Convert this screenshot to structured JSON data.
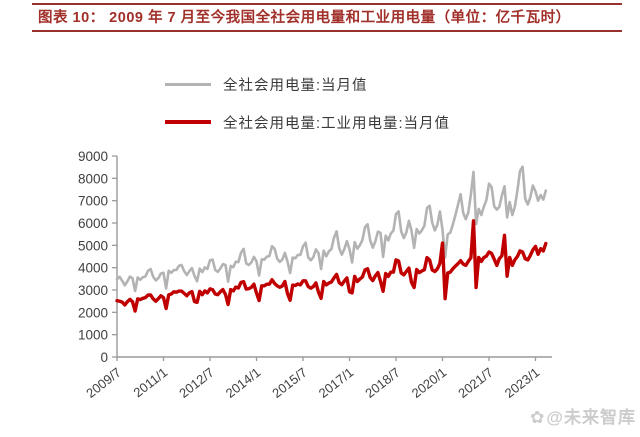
{
  "header": {
    "title": "图表 10：  2009 年 7 月至今我国全社会用电量和工业用电量（单位：亿千瓦时）"
  },
  "legend": [
    {
      "label": "全社会用电量:当月值",
      "color": "#b3b3b3"
    },
    {
      "label": "全社会用电量:工业用电量:当月值",
      "color": "#c00000"
    }
  ],
  "watermark": {
    "logo": "✿",
    "text": "@未来智库"
  },
  "colors": {
    "title_red": "#a1302a",
    "rule_red": "#97322c",
    "axis_gray": "#9a9a9a",
    "tick_label": "#404040"
  },
  "chart_data": {
    "type": "line",
    "title": "2009年7月至今我国全社会用电量和工业用电量",
    "unit": "亿千瓦时",
    "frequency": "monthly",
    "x_start": "2009-07",
    "x_end": "2023-05",
    "x_tick_labels": [
      "2009/7",
      "2011/1",
      "2012/7",
      "2014/1",
      "2015/7",
      "2017/1",
      "2018/7",
      "2020/1",
      "2021/7",
      "2023/1"
    ],
    "x_tick_interval_months": 18,
    "ylim": [
      0,
      9000
    ],
    "y_ticks": [
      0,
      1000,
      2000,
      3000,
      4000,
      5000,
      6000,
      7000,
      8000,
      9000
    ],
    "grid": false,
    "legend_position": "top",
    "series": [
      {
        "name": "全社会用电量:当月值",
        "color": "#b3b3b3",
        "stroke_width": 2.6,
        "values": [
          3480,
          3590,
          3410,
          3210,
          3380,
          3600,
          3530,
          2950,
          3560,
          3460,
          3570,
          3610,
          3860,
          3940,
          3590,
          3430,
          3530,
          3740,
          3770,
          3070,
          3860,
          3770,
          3890,
          3900,
          4090,
          4120,
          3840,
          3670,
          3840,
          3980,
          3630,
          3390,
          3960,
          3800,
          4010,
          3940,
          4330,
          4360,
          3900,
          3810,
          3960,
          4160,
          4120,
          3370,
          4080,
          4020,
          4270,
          4250,
          4670,
          4840,
          4190,
          4120,
          4230,
          4480,
          4280,
          3650,
          4370,
          4360,
          4490,
          4520,
          4960,
          4850,
          4400,
          4260,
          4360,
          4660,
          4270,
          3760,
          4450,
          4420,
          4570,
          4570,
          4950,
          5120,
          4460,
          4330,
          4470,
          4820,
          4650,
          3940,
          4760,
          4510,
          4730,
          4830,
          5340,
          5630,
          4870,
          4580,
          4830,
          5190,
          4830,
          4230,
          5140,
          4850,
          5000,
          5240,
          5810,
          5940,
          5220,
          4900,
          5170,
          5610,
          5560,
          4480,
          5430,
          5220,
          5530,
          5660,
          6400,
          6520,
          5620,
          5330,
          5570,
          6100,
          5660,
          4890,
          5730,
          5530,
          5670,
          5880,
          6670,
          6770,
          6020,
          5670,
          5910,
          6520,
          5700,
          4450,
          5490,
          5570,
          5930,
          6350,
          6820,
          7290,
          6450,
          6170,
          6470,
          7280,
          8290,
          5950,
          6630,
          6360,
          6720,
          7030,
          7760,
          7610,
          6750,
          6600,
          6720,
          7230,
          7650,
          6250,
          6940,
          6360,
          6720,
          7450,
          8320,
          8520,
          7090,
          6830,
          7150,
          7680,
          7410,
          7000,
          7250,
          7050,
          7450
        ]
      },
      {
        "name": "全社会用电量:工业用电量:当月值",
        "color": "#c00000",
        "stroke_width": 3.4,
        "values": [
          2520,
          2500,
          2460,
          2330,
          2470,
          2580,
          2470,
          2060,
          2600,
          2570,
          2630,
          2660,
          2770,
          2780,
          2600,
          2500,
          2610,
          2740,
          2660,
          2170,
          2780,
          2820,
          2920,
          2900,
          2950,
          2950,
          2850,
          2740,
          2870,
          2930,
          2480,
          2450,
          2940,
          2790,
          2960,
          2870,
          3050,
          3020,
          2820,
          2790,
          2920,
          3020,
          2800,
          2350,
          3020,
          2960,
          3130,
          3090,
          3340,
          3370,
          3040,
          3060,
          3120,
          3260,
          2860,
          2530,
          3190,
          3190,
          3260,
          3260,
          3460,
          3290,
          3190,
          3120,
          3180,
          3380,
          2840,
          2540,
          3220,
          3200,
          3270,
          3230,
          3410,
          3410,
          3150,
          3080,
          3150,
          3320,
          2900,
          2630,
          3380,
          3230,
          3310,
          3360,
          3540,
          3700,
          3330,
          3240,
          3400,
          3540,
          2920,
          2870,
          3610,
          3380,
          3490,
          3580,
          3900,
          3950,
          3560,
          3420,
          3630,
          3780,
          3390,
          2940,
          3740,
          3610,
          3800,
          3800,
          4350,
          4300,
          3760,
          3680,
          3830,
          3980,
          3340,
          3110,
          3920,
          3780,
          3850,
          3910,
          4450,
          4350,
          3900,
          3830,
          3940,
          4190,
          5100,
          2610,
          3760,
          3800,
          3950,
          4070,
          4180,
          4310,
          4160,
          4100,
          4280,
          4440,
          6100,
          3110,
          4460,
          4280,
          4450,
          4520,
          4700,
          4640,
          4380,
          4100,
          4400,
          4530,
          5450,
          3620,
          4460,
          4100,
          4350,
          4500,
          4750,
          4700,
          4400,
          4350,
          4550,
          4800,
          4950,
          4600,
          4850,
          4750,
          5080
        ]
      }
    ]
  }
}
